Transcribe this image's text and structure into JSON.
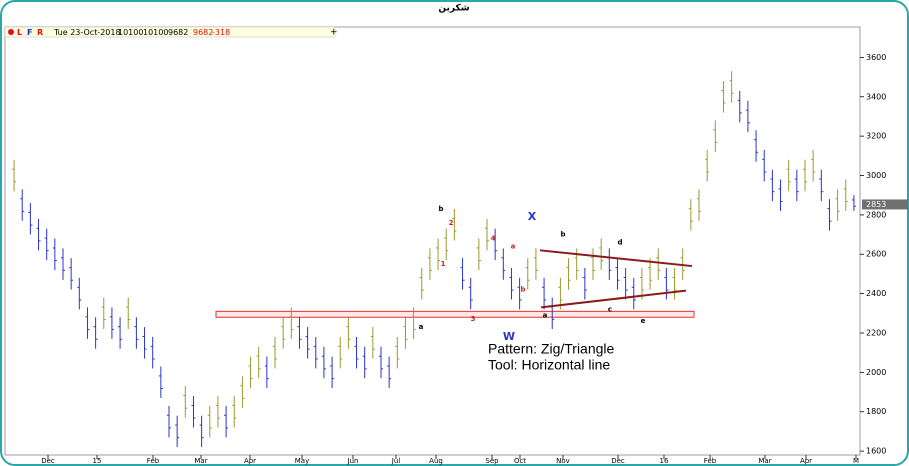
{
  "header": {
    "title": "شکربن"
  },
  "toolbar": {
    "flags": [
      "L",
      "F",
      "R"
    ],
    "date": "Tue 23-Oct-2018",
    "fields": [
      "10100",
      "10100",
      "9682",
      "9682",
      "-318"
    ],
    "add": "+"
  },
  "chart_data": {
    "type": "ohlc",
    "high": [
      3080,
      2930,
      2860,
      2780,
      2730,
      2680,
      2630,
      2580,
      2480,
      2330,
      2280,
      2380,
      2330,
      2280,
      2380,
      2280,
      2230,
      2180,
      2030,
      1830,
      1780,
      1930,
      1880,
      1780,
      1830,
      1880,
      1830,
      1880,
      1980,
      2080,
      2130,
      2080,
      2180,
      2280,
      2330,
      2280,
      2230,
      2180,
      2130,
      2080,
      2180,
      2280,
      2180,
      2130,
      2230,
      2130,
      2080,
      2180,
      2280,
      2330,
      2530,
      2630,
      2680,
      2730,
      2830,
      2580,
      2480,
      2680,
      2780,
      2730,
      2630,
      2530,
      2480,
      2580,
      2630,
      2480,
      2380,
      2480,
      2580,
      2630,
      2530,
      2630,
      2680,
      2630,
      2580,
      2530,
      2480,
      2530,
      2580,
      2630,
      2530,
      2530,
      2630,
      2880,
      2930,
      3130,
      3280,
      3480,
      3530,
      3430,
      3380,
      3230,
      3130,
      3030,
      2980,
      3080,
      3030,
      3080,
      3130,
      3030,
      2880,
      2930,
      2980,
      2900
    ],
    "low": [
      2920,
      2770,
      2700,
      2620,
      2570,
      2520,
      2470,
      2420,
      2320,
      2170,
      2120,
      2220,
      2170,
      2120,
      2220,
      2120,
      2070,
      2020,
      1870,
      1670,
      1620,
      1770,
      1720,
      1620,
      1670,
      1720,
      1670,
      1720,
      1820,
      1920,
      1970,
      1920,
      2020,
      2120,
      2170,
      2120,
      2070,
      2020,
      1970,
      1920,
      2020,
      2120,
      2020,
      1970,
      2070,
      1970,
      1920,
      2020,
      2120,
      2170,
      2370,
      2470,
      2520,
      2570,
      2670,
      2420,
      2320,
      2520,
      2620,
      2570,
      2470,
      2370,
      2320,
      2420,
      2470,
      2320,
      2220,
      2320,
      2420,
      2470,
      2370,
      2470,
      2520,
      2470,
      2420,
      2370,
      2320,
      2370,
      2420,
      2470,
      2370,
      2370,
      2470,
      2720,
      2770,
      2970,
      3120,
      3320,
      3370,
      3270,
      3220,
      3070,
      2970,
      2870,
      2820,
      2920,
      2870,
      2920,
      2970,
      2870,
      2720,
      2770,
      2820,
      2820
    ],
    "up_color": "#9a9a30",
    "down_color": "#2a35c8",
    "ylim": [
      1570,
      3790
    ],
    "yticks": [
      1600,
      1800,
      2000,
      2200,
      2400,
      2600,
      2800,
      3000,
      3200,
      3400,
      3600
    ],
    "last_price": 2853,
    "xtick_labels": [
      "Dec",
      "15",
      "Feb",
      "Mar",
      "Apr",
      "May",
      "Jun",
      "Jul",
      "Aug",
      "Sep",
      "Oct",
      "Nov",
      "Dec",
      "16",
      "Feb",
      "Mar",
      "Apr",
      "M"
    ],
    "support_zone": [
      2280,
      2310
    ],
    "triangle": {
      "upper": [
        2620,
        2540
      ],
      "lower": [
        2330,
        2415
      ]
    },
    "annotations": [
      {
        "text": "b",
        "price": 2830,
        "color": "#000"
      },
      {
        "text": "2",
        "price": 2760,
        "color": "#d02020"
      },
      {
        "text": "1",
        "price": 2550,
        "color": "#d02020"
      },
      {
        "text": "a",
        "price": 2230,
        "color": "#000"
      },
      {
        "text": "3",
        "price": 2270,
        "color": "#d02020"
      },
      {
        "text": "4",
        "price": 2680,
        "color": "#d02020"
      },
      {
        "text": "a",
        "price": 2640,
        "color": "#d02020"
      },
      {
        "text": "b",
        "price": 2420,
        "color": "#d02020"
      },
      {
        "text": "X",
        "price": 2790,
        "color": "#2a35c8"
      },
      {
        "text": "W",
        "price": 2180,
        "color": "#2a35c8"
      },
      {
        "text": "b",
        "price": 2700,
        "color": "#000"
      },
      {
        "text": "a",
        "price": 2290,
        "color": "#000"
      },
      {
        "text": "d",
        "price": 2660,
        "color": "#000"
      },
      {
        "text": "c",
        "price": 2320,
        "color": "#000"
      },
      {
        "text": "e",
        "price": 2260,
        "color": "#000"
      }
    ],
    "notes": [
      "Pattern: Zig/Triangle",
      "Tool: Horizontal line"
    ]
  }
}
